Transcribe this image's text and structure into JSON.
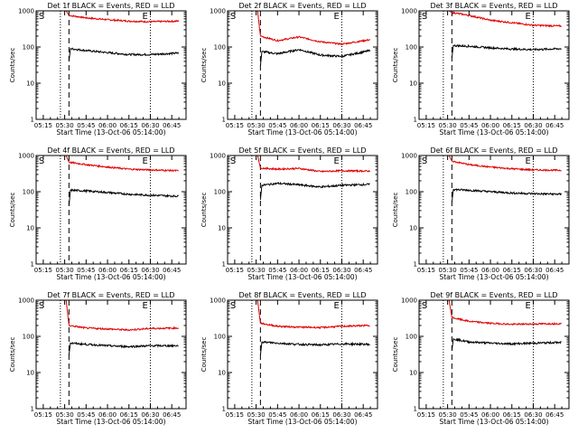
{
  "chart_data": [
    {
      "type": "line",
      "title": "Det 1f BLACK = Events, RED = LLD",
      "xlabel": "Start Time (13-Oct-06 05:14:00)",
      "ylabel": "Counts/sec",
      "x_ticks": [
        "05:15",
        "05:30",
        "05:45",
        "06:00",
        "06:15",
        "06:30",
        "06:45"
      ],
      "y_ticks": [
        "1",
        "10",
        "100",
        "1000"
      ],
      "yscale": "log",
      "ylim": [
        1,
        1000
      ],
      "markers": [
        {
          "label": "S",
          "time": "05:15"
        },
        {
          "label": "E",
          "time": "06:30"
        }
      ],
      "vlines": [
        {
          "time": "05:27",
          "style": "dotted"
        },
        {
          "time": "05:33",
          "style": "dashed"
        },
        {
          "time": "06:30",
          "style": "dotted"
        }
      ],
      "series": [
        {
          "name": "RED",
          "color": "#e00000",
          "times": [
            "05:31",
            "05:33",
            "05:45",
            "06:00",
            "06:15",
            "06:30",
            "06:50"
          ],
          "values": [
            1000,
            750,
            640,
            570,
            520,
            500,
            520
          ]
        },
        {
          "name": "BLACK",
          "color": "#000000",
          "times": [
            "05:33",
            "05:34",
            "05:45",
            "06:00",
            "06:15",
            "06:30",
            "06:50"
          ],
          "values": [
            40,
            90,
            80,
            70,
            62,
            62,
            68
          ]
        }
      ]
    },
    {
      "type": "line",
      "title": "Det 2f BLACK = Events, RED = LLD",
      "xlabel": "Start Time (13-Oct-06 05:14:00)",
      "ylabel": "Counts/sec",
      "x_ticks": [
        "05:15",
        "05:30",
        "05:45",
        "06:00",
        "06:15",
        "06:30",
        "06:45"
      ],
      "y_ticks": [
        "1",
        "10",
        "100",
        "1000"
      ],
      "yscale": "log",
      "ylim": [
        1,
        1000
      ],
      "markers": [
        {
          "label": "S",
          "time": "05:15"
        },
        {
          "label": "E",
          "time": "06:30"
        }
      ],
      "vlines": [
        {
          "time": "05:27",
          "style": "dotted"
        },
        {
          "time": "05:33",
          "style": "dashed"
        },
        {
          "time": "06:30",
          "style": "dotted"
        }
      ],
      "series": [
        {
          "name": "RED",
          "color": "#e00000",
          "times": [
            "05:31",
            "05:33",
            "05:45",
            "06:00",
            "06:15",
            "06:30",
            "06:50"
          ],
          "values": [
            1000,
            200,
            150,
            190,
            140,
            120,
            160
          ]
        },
        {
          "name": "BLACK",
          "color": "#000000",
          "times": [
            "05:33",
            "05:34",
            "05:45",
            "06:00",
            "06:15",
            "06:30",
            "06:50"
          ],
          "values": [
            30,
            75,
            65,
            85,
            60,
            55,
            80
          ]
        }
      ]
    },
    {
      "type": "line",
      "title": "Det 3f BLACK = Events, RED = LLD",
      "xlabel": "Start Time (13-Oct-06 05:14:00)",
      "ylabel": "Counts/sec",
      "x_ticks": [
        "05:15",
        "05:30",
        "05:45",
        "06:00",
        "06:15",
        "06:30",
        "06:45"
      ],
      "y_ticks": [
        "1",
        "10",
        "100",
        "1000"
      ],
      "yscale": "log",
      "ylim": [
        1,
        1000
      ],
      "markers": [
        {
          "label": "S",
          "time": "05:15"
        },
        {
          "label": "E",
          "time": "06:30"
        }
      ],
      "vlines": [
        {
          "time": "05:27",
          "style": "dotted"
        },
        {
          "time": "05:33",
          "style": "dashed"
        },
        {
          "time": "06:30",
          "style": "dotted"
        }
      ],
      "series": [
        {
          "name": "RED",
          "color": "#e00000",
          "times": [
            "05:31",
            "05:33",
            "05:45",
            "06:00",
            "06:15",
            "06:30",
            "06:50"
          ],
          "values": [
            1000,
            900,
            750,
            550,
            470,
            400,
            380
          ]
        },
        {
          "name": "BLACK",
          "color": "#000000",
          "times": [
            "05:33",
            "05:34",
            "05:45",
            "06:00",
            "06:15",
            "06:30",
            "06:50"
          ],
          "values": [
            50,
            110,
            105,
            95,
            88,
            85,
            90
          ]
        }
      ]
    },
    {
      "type": "line",
      "title": "Det 4f BLACK = Events, RED = LLD",
      "xlabel": "Start Time (13-Oct-06 05:14:00)",
      "ylabel": "Counts/sec",
      "x_ticks": [
        "05:15",
        "05:30",
        "05:45",
        "06:00",
        "06:15",
        "06:30",
        "06:45"
      ],
      "y_ticks": [
        "1",
        "10",
        "100",
        "1000"
      ],
      "yscale": "log",
      "ylim": [
        1,
        1000
      ],
      "markers": [
        {
          "label": "S",
          "time": "05:15"
        },
        {
          "label": "E",
          "time": "06:30"
        }
      ],
      "vlines": [
        {
          "time": "05:27",
          "style": "dotted"
        },
        {
          "time": "05:33",
          "style": "dashed"
        },
        {
          "time": "06:30",
          "style": "dotted"
        }
      ],
      "series": [
        {
          "name": "RED",
          "color": "#e00000",
          "times": [
            "05:31",
            "05:33",
            "05:45",
            "06:00",
            "06:15",
            "06:30",
            "06:50"
          ],
          "values": [
            1000,
            650,
            560,
            480,
            420,
            400,
            380
          ]
        },
        {
          "name": "BLACK",
          "color": "#000000",
          "times": [
            "05:33",
            "05:34",
            "05:45",
            "06:00",
            "06:15",
            "06:30",
            "06:50"
          ],
          "values": [
            40,
            110,
            105,
            95,
            85,
            80,
            75
          ]
        }
      ]
    },
    {
      "type": "line",
      "title": "Det 5f BLACK = Events, RED = LLD",
      "xlabel": "Start Time (13-Oct-06 05:14:00)",
      "ylabel": "Counts/sec",
      "x_ticks": [
        "05:15",
        "05:30",
        "05:45",
        "06:00",
        "06:15",
        "06:30",
        "06:45"
      ],
      "y_ticks": [
        "1",
        "10",
        "100",
        "1000"
      ],
      "yscale": "log",
      "ylim": [
        1,
        1000
      ],
      "markers": [
        {
          "label": "S",
          "time": "05:15"
        },
        {
          "label": "E",
          "time": "06:30"
        }
      ],
      "vlines": [
        {
          "time": "05:27",
          "style": "dotted"
        },
        {
          "time": "05:33",
          "style": "dashed"
        },
        {
          "time": "06:30",
          "style": "dotted"
        }
      ],
      "series": [
        {
          "name": "RED",
          "color": "#e00000",
          "times": [
            "05:31",
            "05:33",
            "05:45",
            "06:00",
            "06:15",
            "06:30",
            "06:50"
          ],
          "values": [
            1000,
            450,
            420,
            440,
            360,
            380,
            370
          ]
        },
        {
          "name": "BLACK",
          "color": "#000000",
          "times": [
            "05:33",
            "05:34",
            "05:45",
            "06:00",
            "06:15",
            "06:30",
            "06:50"
          ],
          "values": [
            60,
            150,
            170,
            155,
            135,
            150,
            160
          ]
        }
      ]
    },
    {
      "type": "line",
      "title": "Det 6f BLACK = Events, RED = LLD",
      "xlabel": "Start Time (13-Oct-06 05:14:00)",
      "ylabel": "Counts/sec",
      "x_ticks": [
        "05:15",
        "05:30",
        "05:45",
        "06:00",
        "06:15",
        "06:30",
        "06:45"
      ],
      "y_ticks": [
        "1",
        "10",
        "100",
        "1000"
      ],
      "yscale": "log",
      "ylim": [
        1,
        1000
      ],
      "markers": [
        {
          "label": "S",
          "time": "05:15"
        },
        {
          "label": "E",
          "time": "06:30"
        }
      ],
      "vlines": [
        {
          "time": "05:27",
          "style": "dotted"
        },
        {
          "time": "05:33",
          "style": "dashed"
        },
        {
          "time": "06:30",
          "style": "dotted"
        }
      ],
      "series": [
        {
          "name": "RED",
          "color": "#e00000",
          "times": [
            "05:31",
            "05:33",
            "05:45",
            "06:00",
            "06:15",
            "06:30",
            "06:50"
          ],
          "values": [
            1000,
            700,
            560,
            480,
            430,
            400,
            390
          ]
        },
        {
          "name": "BLACK",
          "color": "#000000",
          "times": [
            "05:33",
            "05:34",
            "05:45",
            "06:00",
            "06:15",
            "06:30",
            "06:50"
          ],
          "values": [
            50,
            115,
            110,
            100,
            92,
            88,
            85
          ]
        }
      ]
    },
    {
      "type": "line",
      "title": "Det 7f BLACK = Events, RED = LLD",
      "xlabel": "Start Time (13-Oct-06 05:14:00)",
      "ylabel": "Counts/sec",
      "x_ticks": [
        "05:15",
        "05:30",
        "05:45",
        "06:00",
        "06:15",
        "06:30",
        "06:45"
      ],
      "y_ticks": [
        "1",
        "10",
        "100",
        "1000"
      ],
      "yscale": "log",
      "ylim": [
        1,
        1000
      ],
      "markers": [
        {
          "label": "S",
          "time": "05:15"
        },
        {
          "label": "E",
          "time": "06:30"
        }
      ],
      "vlines": [
        {
          "time": "05:27",
          "style": "dotted"
        },
        {
          "time": "05:33",
          "style": "dashed"
        },
        {
          "time": "06:30",
          "style": "dotted"
        }
      ],
      "series": [
        {
          "name": "RED",
          "color": "#e00000",
          "times": [
            "05:31",
            "05:33",
            "05:45",
            "06:00",
            "06:15",
            "06:30",
            "06:50"
          ],
          "values": [
            1000,
            200,
            170,
            160,
            150,
            165,
            170
          ]
        },
        {
          "name": "BLACK",
          "color": "#000000",
          "times": [
            "05:33",
            "05:34",
            "05:45",
            "06:00",
            "06:15",
            "06:30",
            "06:50"
          ],
          "values": [
            30,
            65,
            60,
            55,
            52,
            55,
            55
          ]
        }
      ]
    },
    {
      "type": "line",
      "title": "Det 8f BLACK = Events, RED = LLD",
      "xlabel": "Start Time (13-Oct-06 05:14:00)",
      "ylabel": "Counts/sec",
      "x_ticks": [
        "05:15",
        "05:30",
        "05:45",
        "06:00",
        "06:15",
        "06:30",
        "06:45"
      ],
      "y_ticks": [
        "1",
        "10",
        "100",
        "1000"
      ],
      "yscale": "log",
      "ylim": [
        1,
        1000
      ],
      "markers": [
        {
          "label": "S",
          "time": "05:15"
        },
        {
          "label": "E",
          "time": "06:30"
        }
      ],
      "vlines": [
        {
          "time": "05:27",
          "style": "dotted"
        },
        {
          "time": "05:33",
          "style": "dashed"
        },
        {
          "time": "06:30",
          "style": "dotted"
        }
      ],
      "series": [
        {
          "name": "RED",
          "color": "#e00000",
          "times": [
            "05:31",
            "05:33",
            "05:45",
            "06:00",
            "06:15",
            "06:30",
            "06:50"
          ],
          "values": [
            1000,
            230,
            190,
            180,
            175,
            190,
            200
          ]
        },
        {
          "name": "BLACK",
          "color": "#000000",
          "times": [
            "05:33",
            "05:34",
            "05:45",
            "06:00",
            "06:15",
            "06:30",
            "06:50"
          ],
          "values": [
            30,
            70,
            65,
            60,
            58,
            62,
            60
          ]
        }
      ]
    },
    {
      "type": "line",
      "title": "Det 9f BLACK = Events, RED = LLD",
      "xlabel": "Start Time (13-Oct-06 05:14:00)",
      "ylabel": "Counts/sec",
      "x_ticks": [
        "05:15",
        "05:30",
        "05:45",
        "06:00",
        "06:15",
        "06:30",
        "06:45"
      ],
      "y_ticks": [
        "1",
        "10",
        "100",
        "1000"
      ],
      "yscale": "log",
      "ylim": [
        1,
        1000
      ],
      "markers": [
        {
          "label": "S",
          "time": "05:15"
        },
        {
          "label": "E",
          "time": "06:30"
        }
      ],
      "vlines": [
        {
          "time": "05:27",
          "style": "dotted"
        },
        {
          "time": "05:33",
          "style": "dashed"
        },
        {
          "time": "06:30",
          "style": "dotted"
        }
      ],
      "series": [
        {
          "name": "RED",
          "color": "#e00000",
          "times": [
            "05:31",
            "05:33",
            "05:45",
            "06:00",
            "06:15",
            "06:30",
            "06:50"
          ],
          "values": [
            1000,
            330,
            260,
            230,
            215,
            220,
            225
          ]
        },
        {
          "name": "BLACK",
          "color": "#000000",
          "times": [
            "05:33",
            "05:34",
            "05:45",
            "06:00",
            "06:15",
            "06:30",
            "06:50"
          ],
          "values": [
            40,
            85,
            70,
            65,
            62,
            65,
            68
          ]
        }
      ]
    }
  ]
}
